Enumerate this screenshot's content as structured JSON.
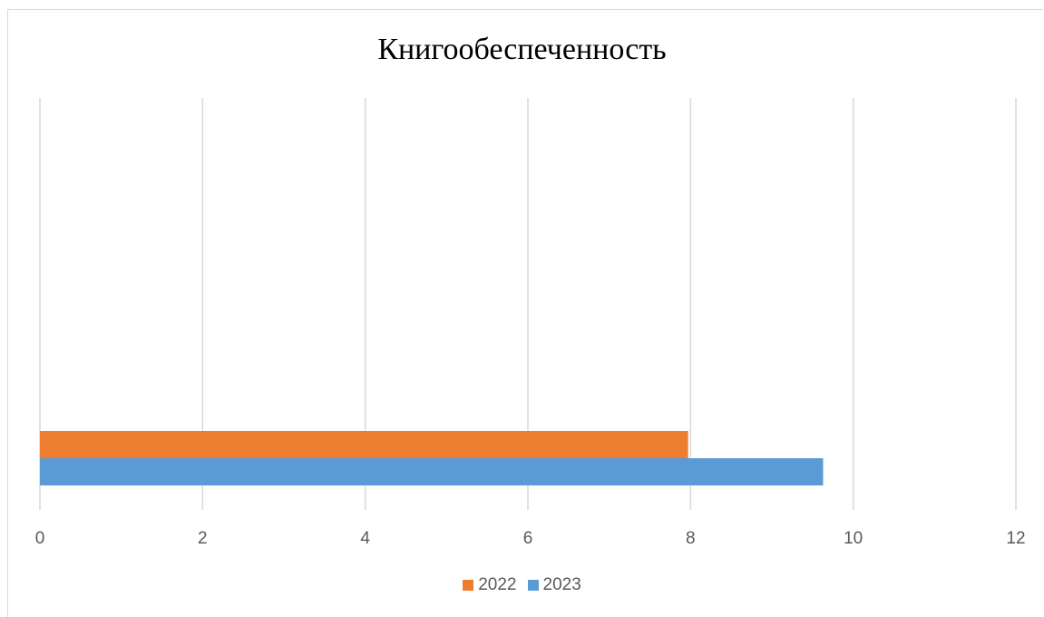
{
  "chart_data": {
    "type": "bar",
    "orientation": "horizontal",
    "title": "Книгообеспеченность",
    "xlabel": "",
    "ylabel": "",
    "categories": [
      ""
    ],
    "series": [
      {
        "name": "2022",
        "values": [
          7.97
        ],
        "color": "#ED7D31"
      },
      {
        "name": "2023",
        "values": [
          9.63
        ],
        "color": "#5B9BD5"
      }
    ],
    "xlim": [
      0,
      12
    ],
    "x_ticks": [
      0,
      2,
      4,
      6,
      8,
      10,
      12
    ],
    "grid": "vertical",
    "legend": "bottom"
  }
}
